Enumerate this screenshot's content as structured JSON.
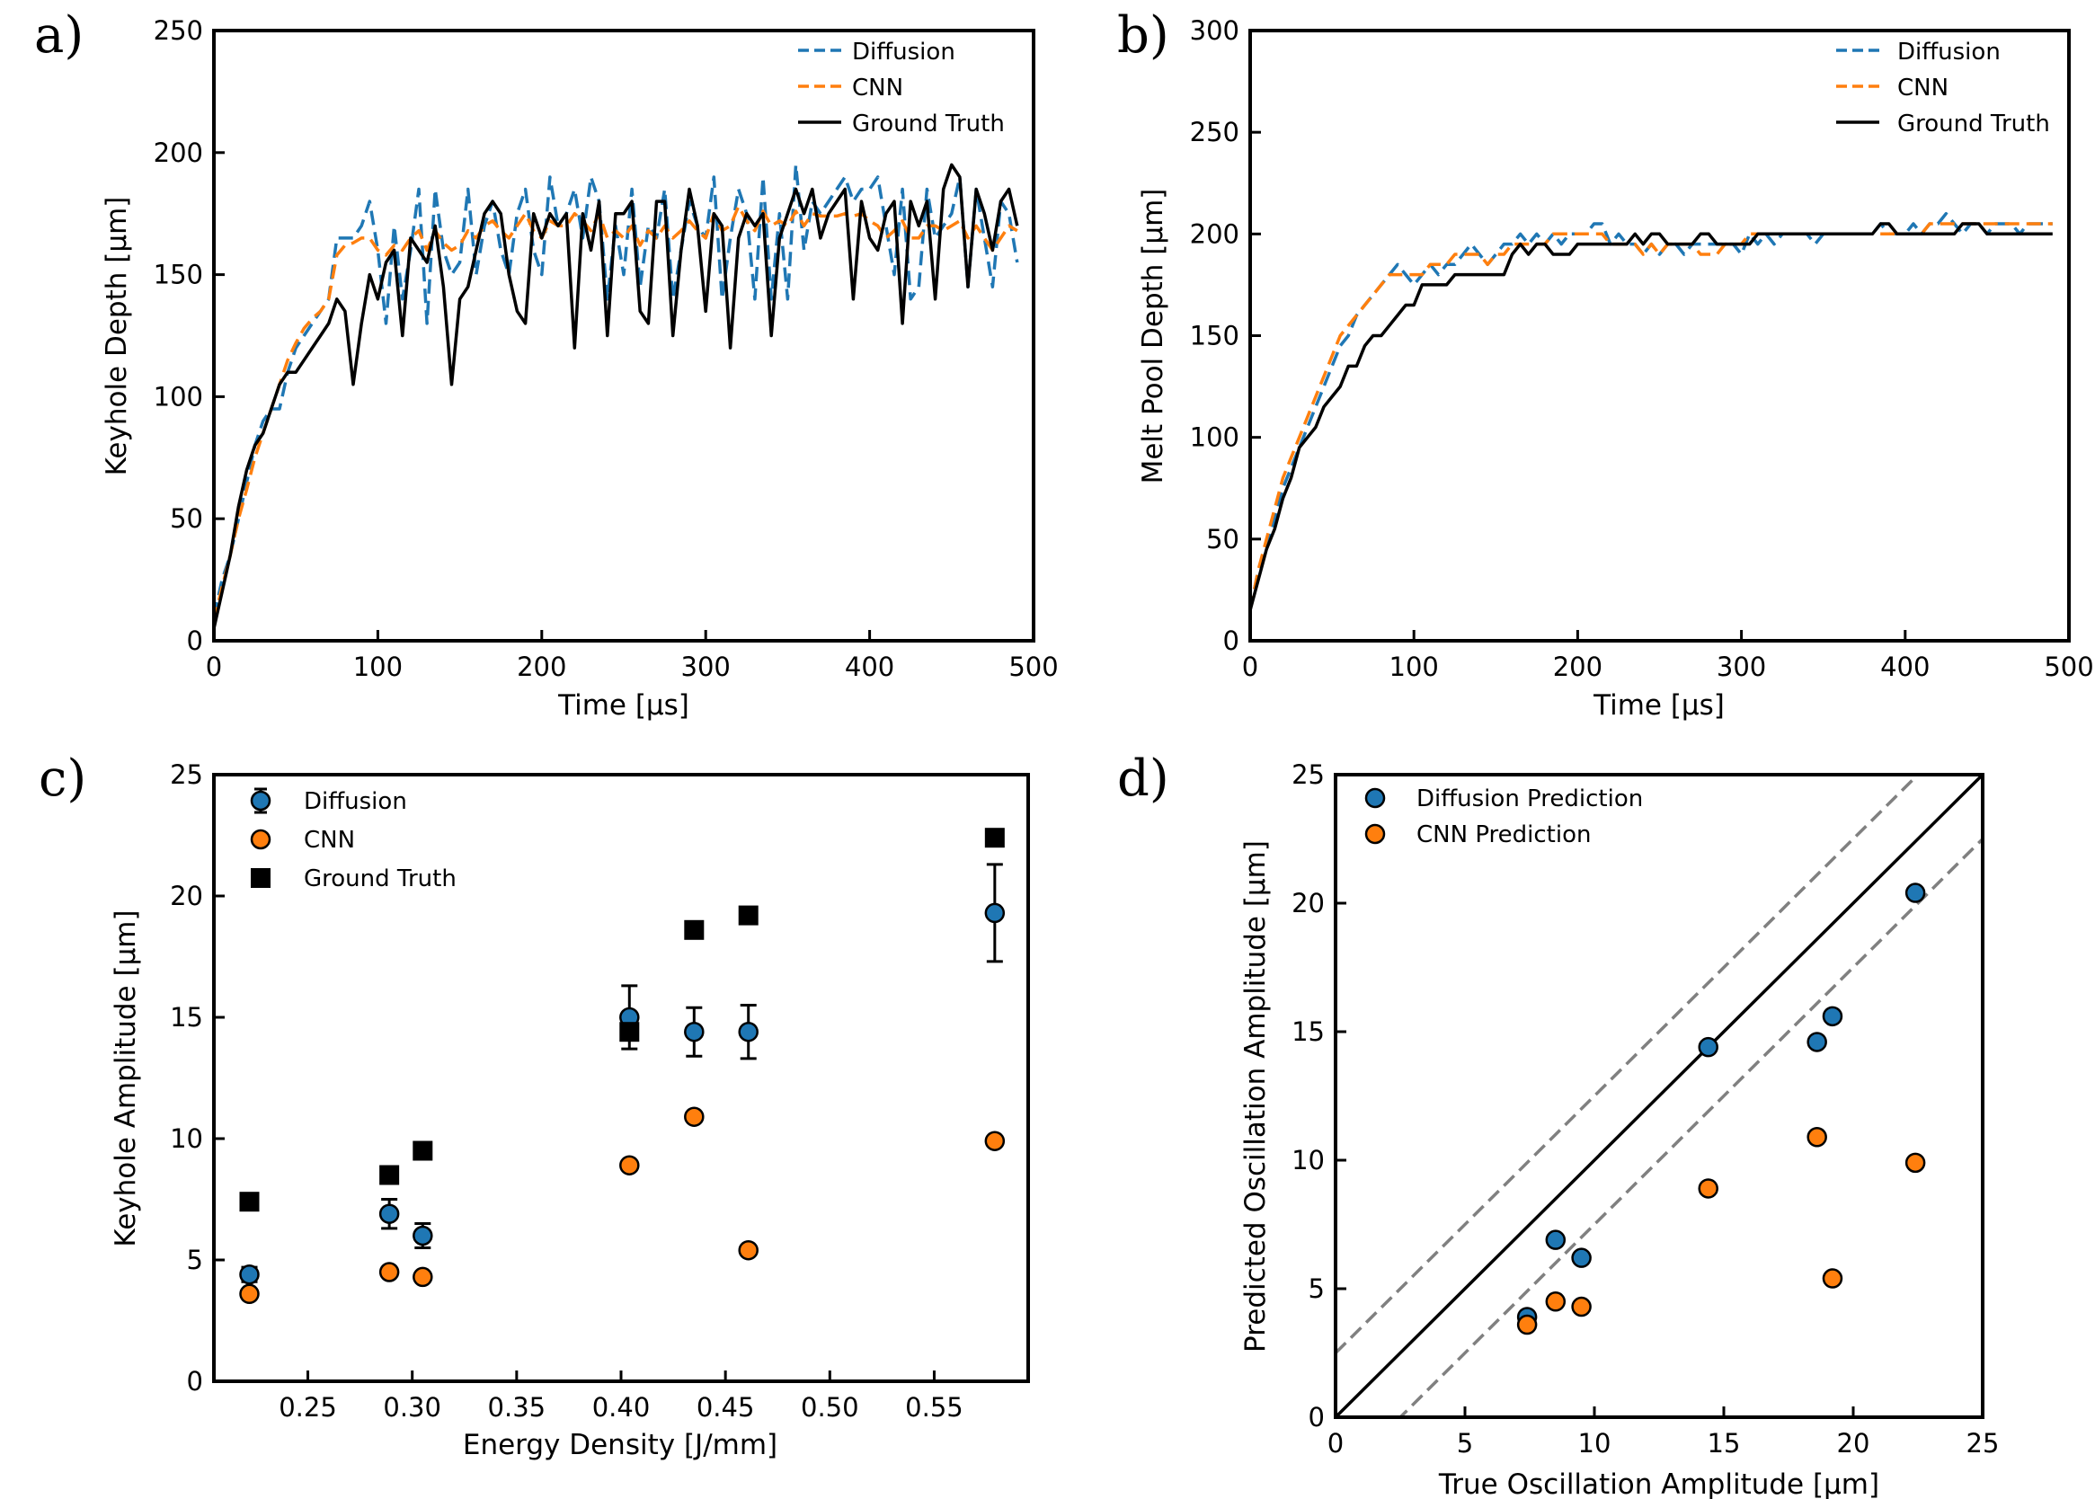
{
  "chart_data": [
    {
      "type": "line",
      "panel_label": "a)",
      "title": "",
      "xlabel": "Time [μs]",
      "ylabel": "Keyhole Depth [μm]",
      "xlim": [
        0,
        500
      ],
      "ylim": [
        0,
        250
      ],
      "xticks": [
        0,
        100,
        200,
        300,
        400,
        500
      ],
      "yticks": [
        0,
        50,
        100,
        150,
        200,
        250
      ],
      "grid": false,
      "legend": "top-right",
      "x": [
        0,
        5,
        10,
        15,
        20,
        25,
        30,
        35,
        40,
        45,
        50,
        55,
        60,
        65,
        70,
        75,
        80,
        85,
        90,
        95,
        100,
        105,
        110,
        115,
        120,
        125,
        130,
        135,
        140,
        145,
        150,
        155,
        160,
        165,
        170,
        175,
        180,
        185,
        190,
        195,
        200,
        205,
        210,
        215,
        220,
        225,
        230,
        235,
        240,
        245,
        250,
        255,
        260,
        265,
        270,
        275,
        280,
        285,
        290,
        295,
        300,
        305,
        310,
        315,
        320,
        325,
        330,
        335,
        340,
        345,
        350,
        355,
        360,
        365,
        370,
        375,
        380,
        385,
        390,
        395,
        400,
        405,
        410,
        415,
        420,
        425,
        430,
        435,
        440,
        445,
        450,
        455,
        460,
        465,
        470,
        475,
        480,
        485,
        490
      ],
      "series": [
        {
          "name": "Diffusion",
          "color": "#1f77b4",
          "style": "dashed",
          "values": [
            10,
            25,
            35,
            50,
            65,
            80,
            90,
            95,
            95,
            110,
            120,
            125,
            130,
            135,
            140,
            165,
            165,
            165,
            170,
            180,
            160,
            130,
            170,
            140,
            160,
            185,
            130,
            185,
            160,
            150,
            155,
            185,
            150,
            170,
            180,
            160,
            150,
            175,
            185,
            160,
            150,
            190,
            170,
            175,
            185,
            165,
            190,
            180,
            140,
            170,
            150,
            185,
            145,
            170,
            165,
            185,
            140,
            160,
            180,
            170,
            165,
            190,
            140,
            165,
            185,
            175,
            140,
            190,
            140,
            175,
            140,
            195,
            160,
            180,
            175,
            180,
            185,
            190,
            180,
            185,
            185,
            190,
            170,
            150,
            185,
            140,
            145,
            185,
            165,
            170,
            175,
            190,
            145,
            185,
            165,
            145,
            180,
            175,
            155
          ]
        },
        {
          "name": "CNN",
          "color": "#ff7f0e",
          "style": "dashed",
          "values": [
            8,
            22,
            35,
            50,
            62,
            75,
            85,
            95,
            105,
            115,
            122,
            128,
            132,
            135,
            140,
            158,
            162,
            163,
            165,
            165,
            160,
            158,
            162,
            160,
            165,
            168,
            160,
            168,
            163,
            160,
            162,
            168,
            165,
            170,
            172,
            168,
            165,
            170,
            175,
            168,
            165,
            172,
            170,
            170,
            175,
            172,
            168,
            175,
            165,
            168,
            165,
            170,
            162,
            168,
            165,
            170,
            165,
            168,
            172,
            168,
            165,
            175,
            168,
            170,
            178,
            172,
            168,
            176,
            170,
            172,
            170,
            176,
            170,
            175,
            174,
            174,
            174,
            175,
            174,
            175,
            172,
            170,
            165,
            168,
            172,
            165,
            165,
            170,
            170,
            168,
            170,
            172,
            165,
            170,
            165,
            160,
            165,
            170,
            168
          ]
        },
        {
          "name": "Ground Truth",
          "color": "#000000",
          "style": "solid",
          "values": [
            5,
            20,
            35,
            55,
            70,
            80,
            85,
            95,
            105,
            110,
            110,
            115,
            120,
            125,
            130,
            140,
            135,
            105,
            130,
            150,
            140,
            155,
            160,
            125,
            165,
            160,
            155,
            170,
            145,
            105,
            140,
            145,
            160,
            175,
            180,
            175,
            150,
            135,
            130,
            175,
            165,
            175,
            170,
            175,
            120,
            175,
            160,
            180,
            125,
            175,
            175,
            180,
            135,
            130,
            180,
            180,
            125,
            160,
            185,
            170,
            135,
            175,
            170,
            120,
            165,
            175,
            170,
            175,
            125,
            165,
            175,
            185,
            175,
            185,
            165,
            175,
            180,
            185,
            140,
            180,
            165,
            160,
            175,
            180,
            130,
            180,
            170,
            180,
            140,
            185,
            195,
            190,
            145,
            185,
            175,
            160,
            180,
            185,
            170
          ]
        }
      ]
    },
    {
      "type": "line",
      "panel_label": "b)",
      "title": "",
      "xlabel": "Time [μs]",
      "ylabel": "Melt Pool Depth [μm]",
      "xlim": [
        0,
        500
      ],
      "ylim": [
        0,
        300
      ],
      "xticks": [
        0,
        100,
        200,
        300,
        400,
        500
      ],
      "yticks": [
        0,
        50,
        100,
        150,
        200,
        250,
        300
      ],
      "grid": false,
      "legend": "top-right",
      "x": [
        0,
        5,
        10,
        15,
        20,
        25,
        30,
        35,
        40,
        45,
        50,
        55,
        60,
        65,
        70,
        75,
        80,
        85,
        90,
        95,
        100,
        105,
        110,
        115,
        120,
        125,
        130,
        135,
        140,
        145,
        150,
        155,
        160,
        165,
        170,
        175,
        180,
        185,
        190,
        195,
        200,
        205,
        210,
        215,
        220,
        225,
        230,
        235,
        240,
        245,
        250,
        255,
        260,
        265,
        270,
        275,
        280,
        285,
        290,
        295,
        300,
        305,
        310,
        315,
        320,
        325,
        330,
        335,
        340,
        345,
        350,
        355,
        360,
        365,
        370,
        375,
        380,
        385,
        390,
        395,
        400,
        405,
        410,
        415,
        420,
        425,
        430,
        435,
        440,
        445,
        450,
        455,
        460,
        465,
        470,
        475,
        480,
        485,
        490
      ],
      "series": [
        {
          "name": "Diffusion",
          "color": "#1f77b4",
          "style": "dashed",
          "values": [
            15,
            35,
            45,
            60,
            75,
            85,
            95,
            105,
            115,
            125,
            135,
            145,
            150,
            160,
            165,
            170,
            175,
            180,
            185,
            180,
            175,
            180,
            185,
            180,
            185,
            185,
            190,
            195,
            190,
            185,
            190,
            195,
            195,
            200,
            195,
            200,
            195,
            200,
            195,
            200,
            200,
            200,
            205,
            205,
            195,
            200,
            195,
            195,
            190,
            195,
            190,
            195,
            195,
            190,
            195,
            195,
            195,
            195,
            195,
            195,
            190,
            200,
            195,
            200,
            195,
            200,
            200,
            200,
            200,
            195,
            200,
            200,
            200,
            200,
            200,
            200,
            200,
            205,
            200,
            200,
            200,
            205,
            200,
            205,
            205,
            210,
            205,
            200,
            205,
            205,
            200,
            205,
            205,
            205,
            200,
            205,
            205,
            205,
            205
          ]
        },
        {
          "name": "CNN",
          "color": "#ff7f0e",
          "style": "dashed",
          "values": [
            15,
            35,
            50,
            65,
            80,
            90,
            100,
            110,
            120,
            130,
            140,
            150,
            155,
            160,
            165,
            170,
            175,
            180,
            180,
            180,
            180,
            180,
            185,
            185,
            185,
            190,
            190,
            190,
            190,
            185,
            190,
            190,
            195,
            195,
            195,
            195,
            195,
            200,
            200,
            200,
            200,
            200,
            200,
            200,
            195,
            195,
            195,
            195,
            190,
            195,
            190,
            195,
            195,
            195,
            195,
            190,
            190,
            190,
            195,
            195,
            195,
            200,
            200,
            200,
            200,
            200,
            200,
            200,
            200,
            200,
            200,
            200,
            200,
            200,
            200,
            200,
            200,
            200,
            200,
            200,
            200,
            200,
            200,
            205,
            205,
            205,
            205,
            205,
            205,
            205,
            205,
            205,
            205,
            205,
            205,
            205,
            205,
            205,
            205
          ]
        },
        {
          "name": "Ground Truth",
          "color": "#000000",
          "style": "solid",
          "values": [
            15,
            30,
            45,
            55,
            70,
            80,
            95,
            100,
            105,
            115,
            120,
            125,
            135,
            135,
            145,
            150,
            150,
            155,
            160,
            165,
            165,
            175,
            175,
            175,
            175,
            180,
            180,
            180,
            180,
            180,
            180,
            180,
            190,
            195,
            190,
            195,
            195,
            190,
            190,
            190,
            195,
            195,
            195,
            195,
            195,
            195,
            195,
            200,
            195,
            200,
            200,
            195,
            195,
            195,
            195,
            200,
            200,
            195,
            195,
            195,
            195,
            195,
            200,
            200,
            200,
            200,
            200,
            200,
            200,
            200,
            200,
            200,
            200,
            200,
            200,
            200,
            200,
            205,
            205,
            200,
            200,
            200,
            200,
            200,
            200,
            200,
            200,
            205,
            205,
            205,
            200,
            200,
            200,
            200,
            200,
            200,
            200,
            200,
            200
          ]
        }
      ]
    },
    {
      "type": "scatter",
      "panel_label": "c)",
      "title": "",
      "xlabel": "Energy Density [J/mm]",
      "ylabel": "Keyhole Amplitude [μm]",
      "xlim": [
        0.205,
        0.595
      ],
      "ylim": [
        0,
        25
      ],
      "xticks": [
        0.25,
        0.3,
        0.35,
        0.4,
        0.45,
        0.5,
        0.55
      ],
      "xtick_labels": [
        "0.25",
        "0.30",
        "0.35",
        "0.40",
        "0.45",
        "0.50",
        "0.55"
      ],
      "yticks": [
        0,
        5,
        10,
        15,
        20,
        25
      ],
      "grid": false,
      "legend": "top-left",
      "x": [
        0.222,
        0.289,
        0.305,
        0.404,
        0.435,
        0.461,
        0.579
      ],
      "series": [
        {
          "name": "Diffusion",
          "color": "#1f77b4",
          "marker": "circle",
          "values": [
            4.4,
            6.9,
            6.0,
            15.0,
            14.4,
            14.4,
            19.3
          ],
          "errors": [
            0.3,
            0.6,
            0.5,
            1.3,
            1.0,
            1.1,
            2.0
          ]
        },
        {
          "name": "CNN",
          "color": "#ff7f0e",
          "marker": "circle",
          "values": [
            3.6,
            4.5,
            4.3,
            8.9,
            10.9,
            5.4,
            9.9
          ]
        },
        {
          "name": "Ground Truth",
          "color": "#000000",
          "marker": "square",
          "values": [
            7.4,
            8.5,
            9.5,
            14.4,
            18.6,
            19.2,
            22.4
          ]
        }
      ]
    },
    {
      "type": "scatter",
      "panel_label": "d)",
      "title": "",
      "xlabel": "True Oscillation Amplitude [μm]",
      "ylabel": "Predicted Oscillation Amplitude [μm]",
      "xlim": [
        0,
        25
      ],
      "ylim": [
        0,
        25
      ],
      "xticks": [
        0,
        5,
        10,
        15,
        20,
        25
      ],
      "yticks": [
        0,
        5,
        10,
        15,
        20,
        25
      ],
      "grid": false,
      "legend": "top-left",
      "reference_lines": [
        {
          "name": "identity",
          "offset": 0,
          "style": "solid",
          "color": "#000000"
        },
        {
          "name": "upper band",
          "offset": 2.5,
          "style": "dashed",
          "color": "#808080"
        },
        {
          "name": "lower band",
          "offset": -2.5,
          "style": "dashed",
          "color": "#808080"
        }
      ],
      "series": [
        {
          "name": "Diffusion Prediction",
          "color": "#1f77b4",
          "marker": "circle",
          "x": [
            7.4,
            8.5,
            9.5,
            14.4,
            18.6,
            19.2,
            22.4
          ],
          "values": [
            3.9,
            6.9,
            6.2,
            14.4,
            14.6,
            15.6,
            20.4
          ]
        },
        {
          "name": "CNN Prediction",
          "color": "#ff7f0e",
          "marker": "circle",
          "x": [
            7.4,
            8.5,
            9.5,
            14.4,
            18.6,
            19.2,
            22.4
          ],
          "values": [
            3.6,
            4.5,
            4.3,
            8.9,
            10.9,
            5.4,
            9.9
          ]
        }
      ]
    }
  ]
}
